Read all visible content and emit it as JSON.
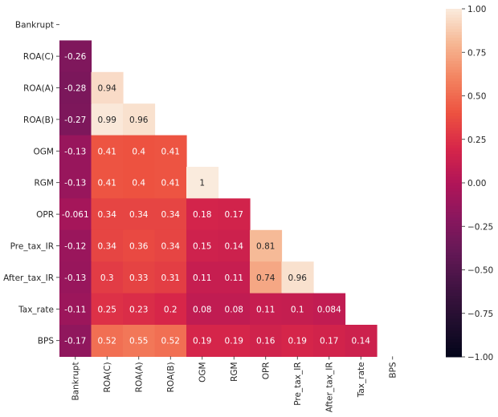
{
  "chart_data": {
    "type": "heatmap",
    "title": "",
    "xlabel": "",
    "ylabel": "",
    "row_labels": [
      "Bankrupt",
      "ROA(C)",
      "ROA(A)",
      "ROA(B)",
      "OGM",
      "RGM",
      "OPR",
      "Pre_tax_IR",
      "After_tax_IR",
      "Tax_rate",
      "BPS"
    ],
    "col_labels": [
      "Bankrupt",
      "ROA(C)",
      "ROA(A)",
      "ROA(B)",
      "OGM",
      "RGM",
      "OPR",
      "Pre_tax_IR",
      "After_tax_IR",
      "Tax_rate",
      "BPS"
    ],
    "mask": "upper triangle including diagonal",
    "values": [
      [],
      [
        "-0.26"
      ],
      [
        "-0.28",
        "0.94"
      ],
      [
        "-0.27",
        "0.99",
        "0.96"
      ],
      [
        "-0.13",
        "0.41",
        "0.4",
        "0.41"
      ],
      [
        "-0.13",
        "0.41",
        "0.4",
        "0.41",
        "1"
      ],
      [
        "-0.061",
        "0.34",
        "0.34",
        "0.34",
        "0.18",
        "0.17"
      ],
      [
        "-0.12",
        "0.34",
        "0.36",
        "0.34",
        "0.15",
        "0.14",
        "0.81"
      ],
      [
        "-0.13",
        "0.3",
        "0.33",
        "0.31",
        "0.11",
        "0.11",
        "0.74",
        "0.96"
      ],
      [
        "-0.11",
        "0.25",
        "0.23",
        "0.2",
        "0.08",
        "0.08",
        "0.11",
        "0.1",
        "0.084"
      ],
      [
        "-0.17",
        "0.52",
        "0.55",
        "0.52",
        "0.19",
        "0.19",
        "0.16",
        "0.19",
        "0.17",
        "0.14"
      ]
    ],
    "vmin": -1,
    "vmax": 1,
    "colormap": "rocket",
    "colorbar_ticks": [
      "1.00",
      "0.75",
      "0.50",
      "0.25",
      "0.00",
      "−0.25",
      "−0.50",
      "−0.75",
      "−1.00"
    ],
    "colorbar_tick_values": [
      1,
      0.75,
      0.5,
      0.25,
      0,
      -0.25,
      -0.5,
      -0.75,
      -1
    ],
    "grid": false,
    "colorbar_placement": "right"
  }
}
